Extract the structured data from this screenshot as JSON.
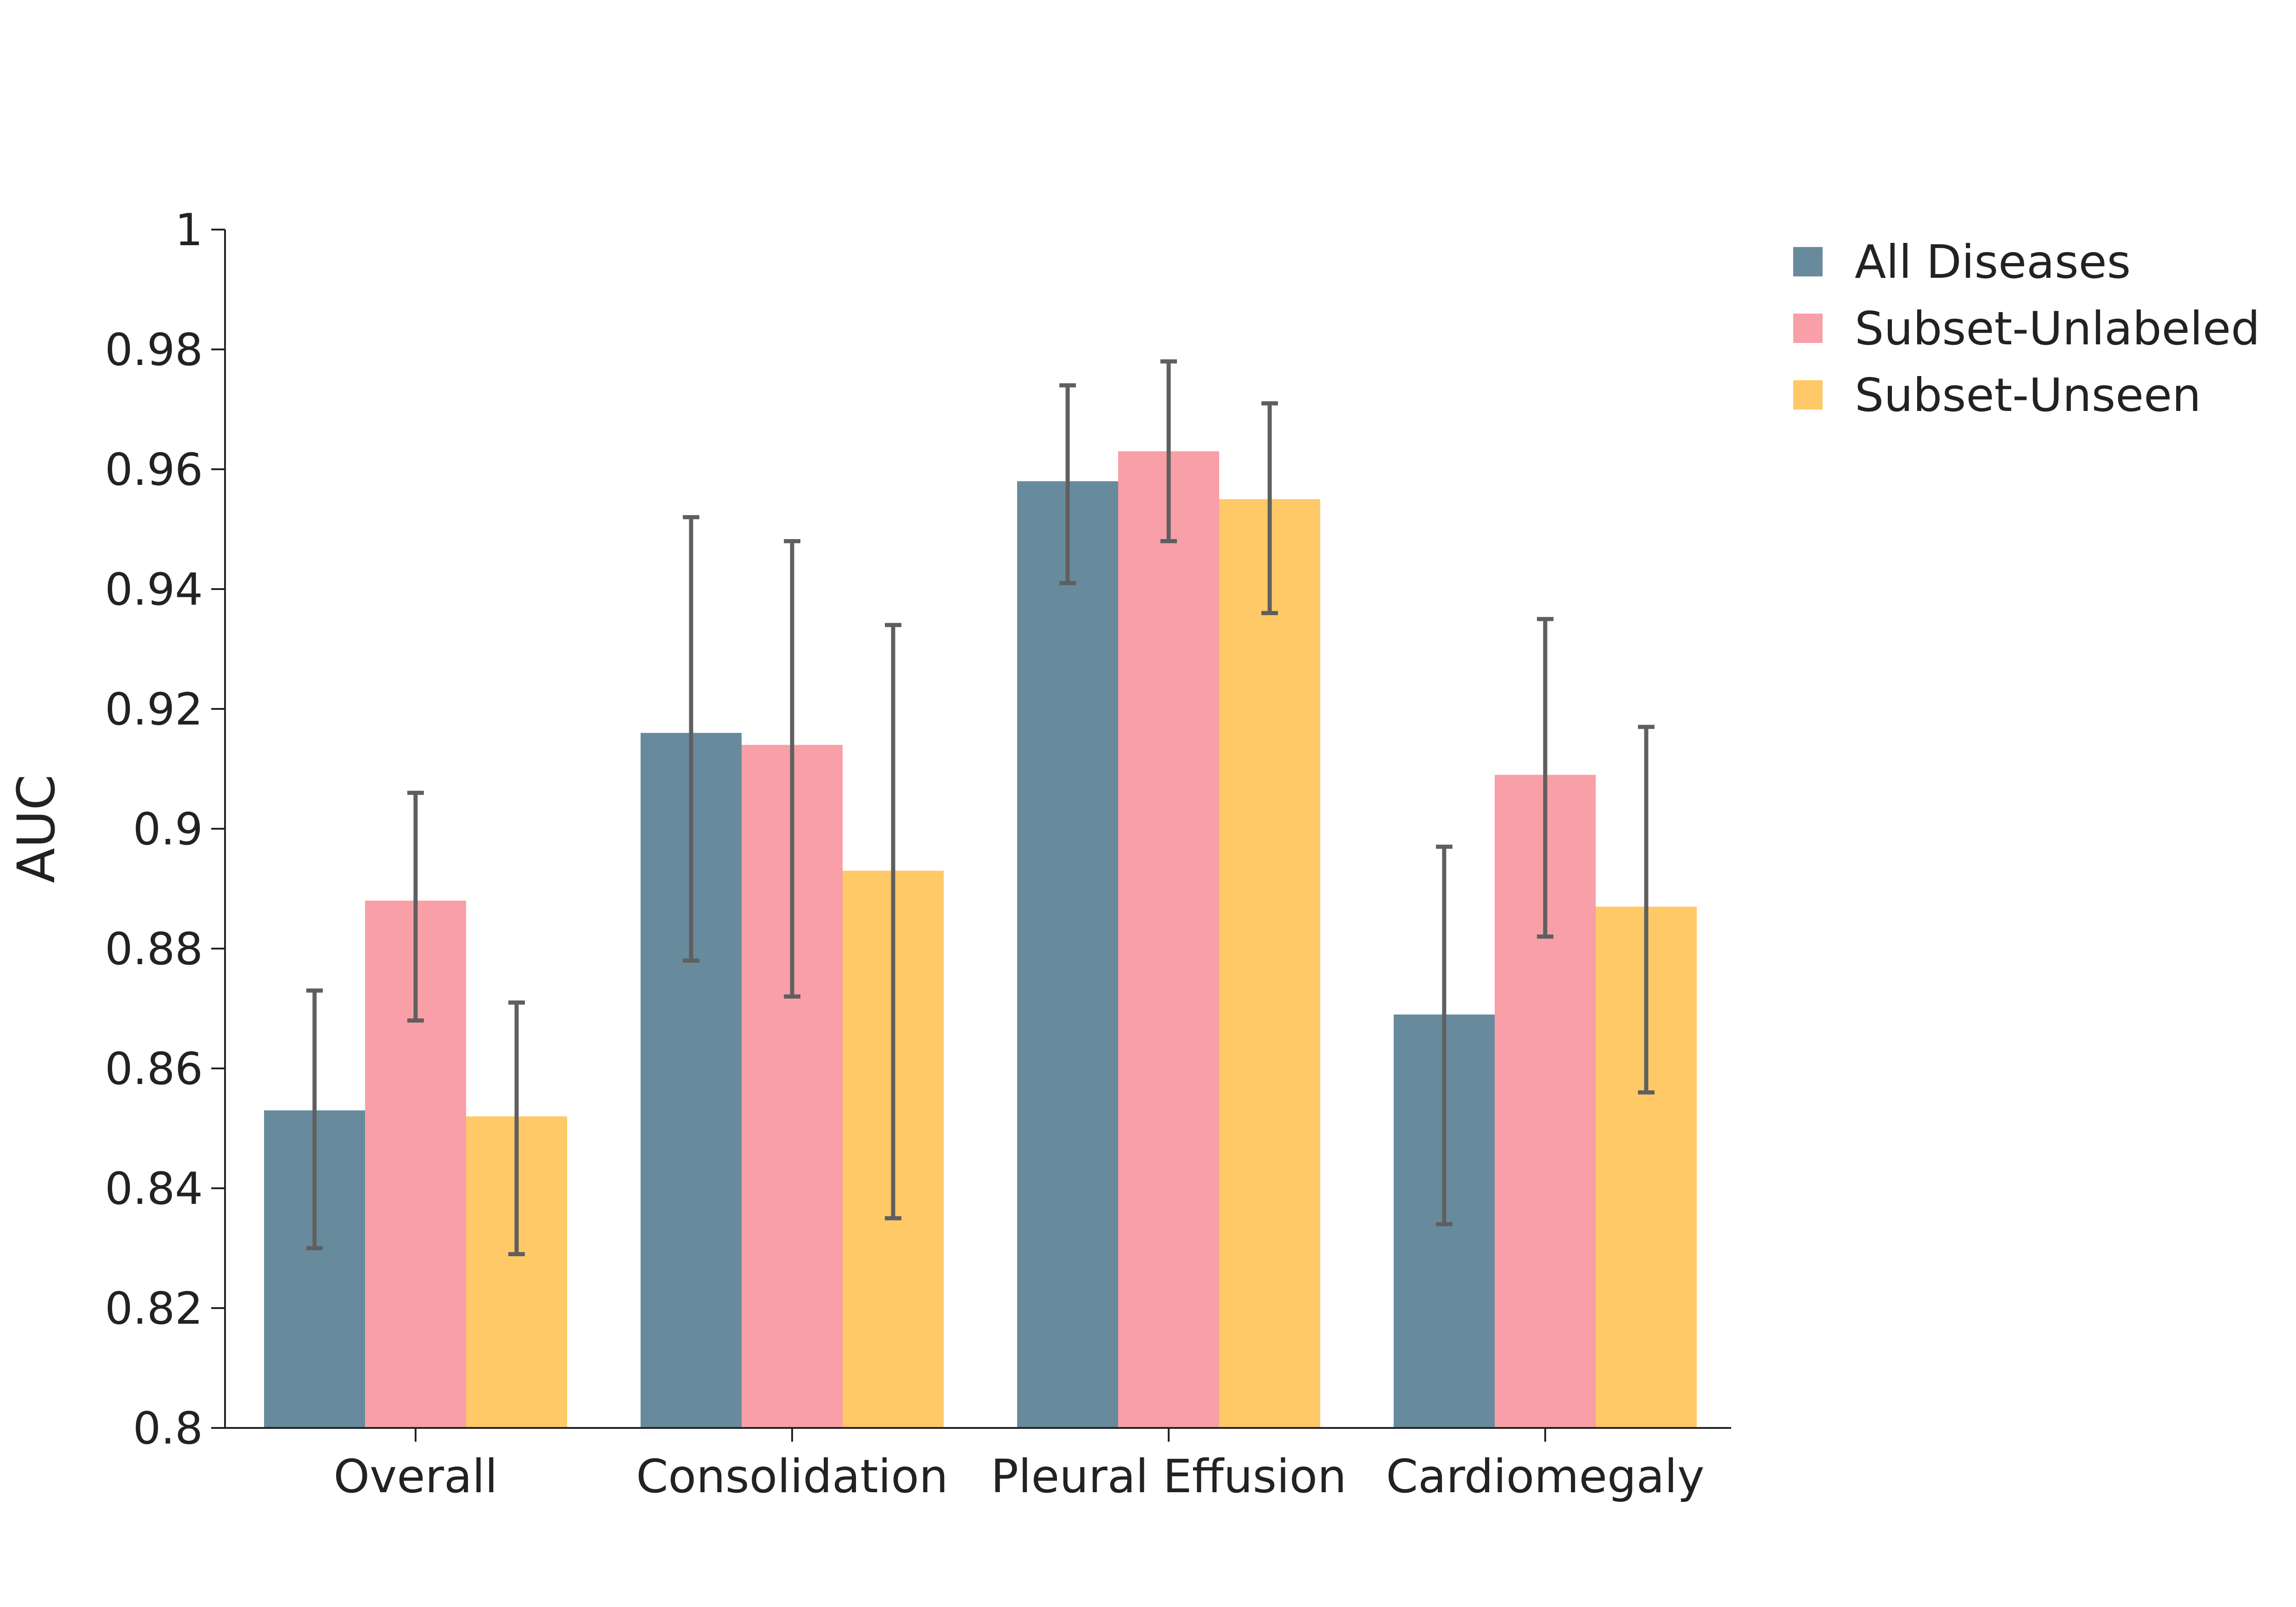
{
  "chart_data": {
    "type": "bar",
    "title": "",
    "xlabel": "",
    "ylabel": "AUC",
    "ylim": [
      0.8,
      1.0
    ],
    "yticks": [
      0.8,
      0.82,
      0.84,
      0.86,
      0.88,
      0.9,
      0.92,
      0.94,
      0.96,
      0.98,
      1.0
    ],
    "ytick_labels": [
      "0.8",
      "0.82",
      "0.84",
      "0.86",
      "0.88",
      "0.9",
      "0.92",
      "0.94",
      "0.96",
      "0.98",
      "1"
    ],
    "categories": [
      "Overall",
      "Consolidation",
      "Pleural Effusion",
      "Cardiomegaly"
    ],
    "legend_position": "top-right",
    "grid": false,
    "series": [
      {
        "name": "All Diseases",
        "color": "#678b9d",
        "values": [
          0.853,
          0.916,
          0.958,
          0.869
        ],
        "error_low": [
          0.83,
          0.878,
          0.941,
          0.834
        ],
        "error_high": [
          0.873,
          0.952,
          0.974,
          0.897
        ]
      },
      {
        "name": "Subset-Unlabeled",
        "color": "#f99fa7",
        "values": [
          0.888,
          0.914,
          0.963,
          0.909
        ],
        "error_low": [
          0.868,
          0.872,
          0.948,
          0.882
        ],
        "error_high": [
          0.906,
          0.948,
          0.978,
          0.935
        ]
      },
      {
        "name": "Subset-Unseen",
        "color": "#fec966",
        "values": [
          0.852,
          0.893,
          0.955,
          0.887
        ],
        "error_low": [
          0.829,
          0.835,
          0.936,
          0.856
        ],
        "error_high": [
          0.871,
          0.934,
          0.971,
          0.917
        ]
      }
    ]
  }
}
